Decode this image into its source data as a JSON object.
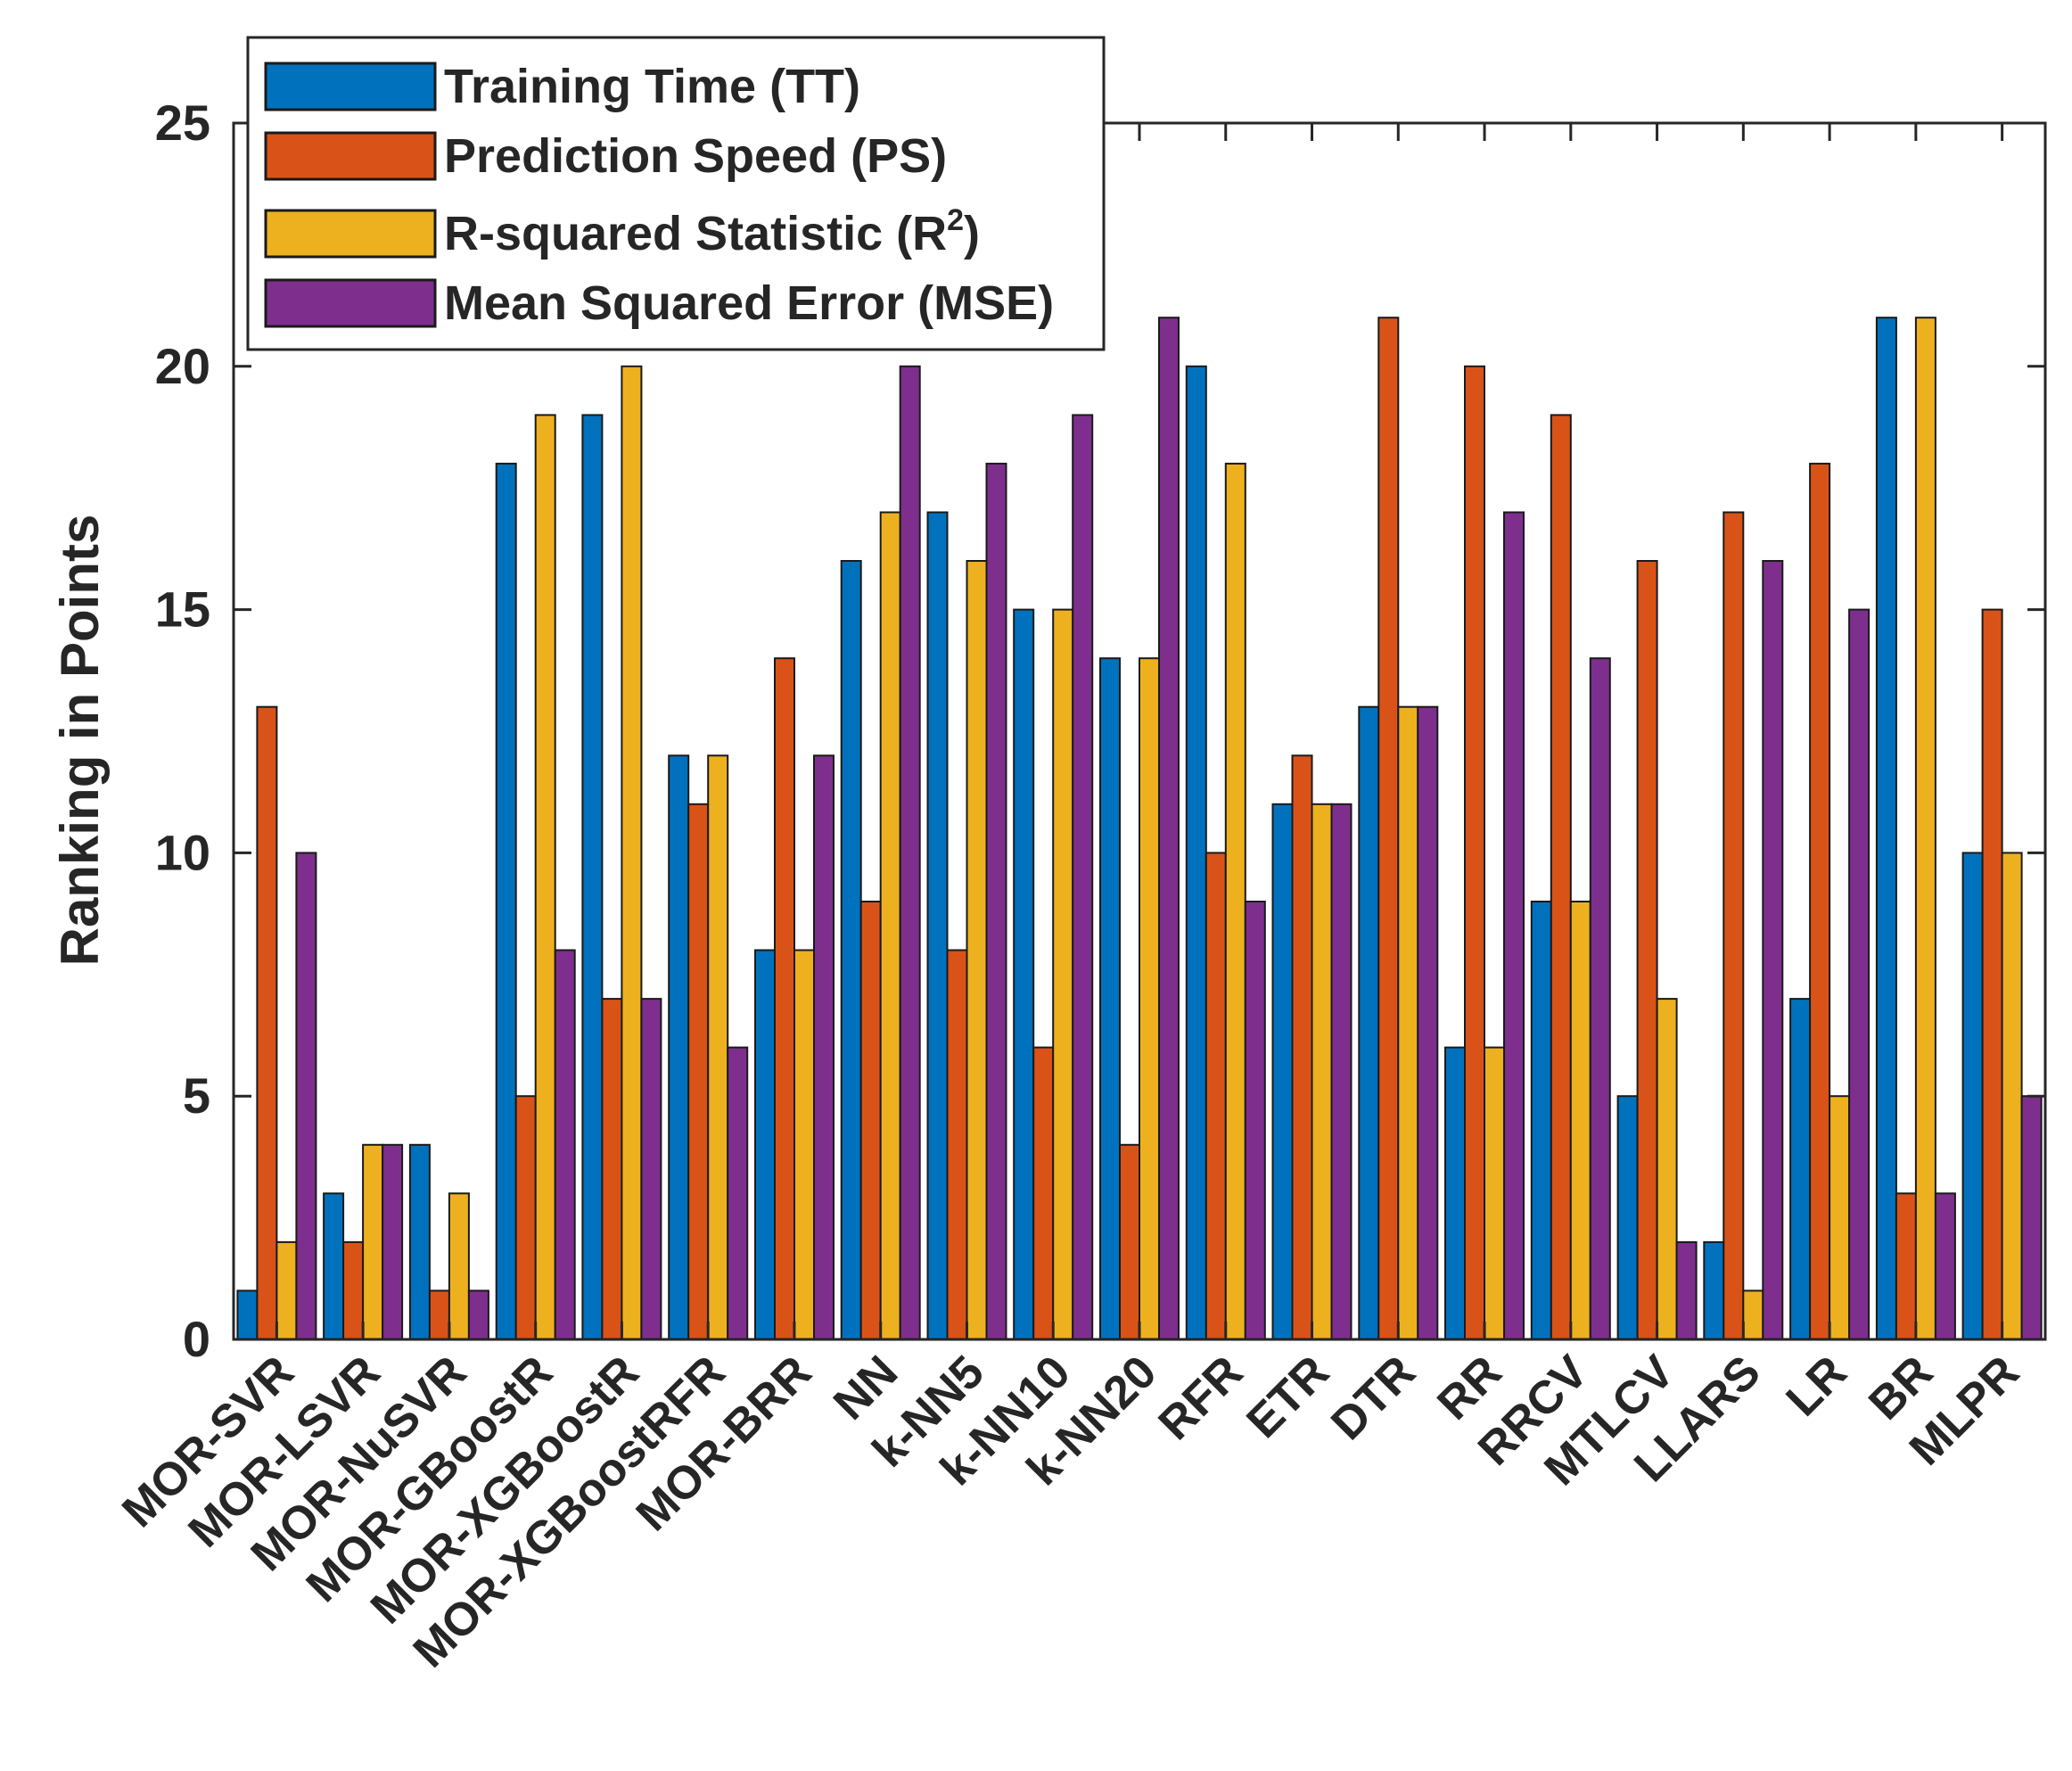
{
  "chart_data": {
    "type": "bar",
    "categories": [
      "MOR-SVR",
      "MOR-LSVR",
      "MOR-NuSVR",
      "MOR-GBoostR",
      "MOR-XGBoostR",
      "MOR-XGBoostRFR",
      "MOR-BRR",
      "NN",
      "k-NN5",
      "k-NN10",
      "k-NN20",
      "RFR",
      "ETR",
      "DTR",
      "RR",
      "RRCV",
      "MTLCV",
      "LLARS",
      "LR",
      "BR",
      "MLPR"
    ],
    "series": [
      {
        "name": "Training Time (TT)",
        "color": "#0072BD",
        "values": [
          1,
          3,
          4,
          18,
          19,
          12,
          8,
          16,
          17,
          15,
          14,
          20,
          11,
          13,
          6,
          9,
          5,
          2,
          7,
          21,
          10
        ]
      },
      {
        "name": "Prediction Speed (PS)",
        "color": "#D95319",
        "values": [
          13,
          2,
          1,
          5,
          7,
          11,
          14,
          9,
          8,
          6,
          4,
          10,
          12,
          21,
          20,
          19,
          16,
          17,
          18,
          3,
          15
        ]
      },
      {
        "name": "R-squared Statistic (R",
        "name_sup": "2",
        "name_suffix": ")",
        "color": "#EDB120",
        "values": [
          2,
          4,
          3,
          19,
          20,
          12,
          8,
          17,
          16,
          15,
          14,
          18,
          11,
          13,
          6,
          9,
          7,
          1,
          5,
          21,
          10
        ]
      },
      {
        "name": "Mean Squared Error (MSE)",
        "color": "#7E2F8E",
        "values": [
          10,
          4,
          1,
          8,
          7,
          6,
          12,
          20,
          18,
          19,
          21,
          9,
          11,
          13,
          17,
          14,
          2,
          16,
          15,
          3,
          5
        ]
      }
    ],
    "xlabel": "",
    "ylabel": "Ranking in Points",
    "ylim": [
      0,
      25
    ],
    "yticks": [
      "0",
      "5",
      "10",
      "15",
      "20",
      "25"
    ],
    "grid": false,
    "legend_position": "top-left"
  }
}
